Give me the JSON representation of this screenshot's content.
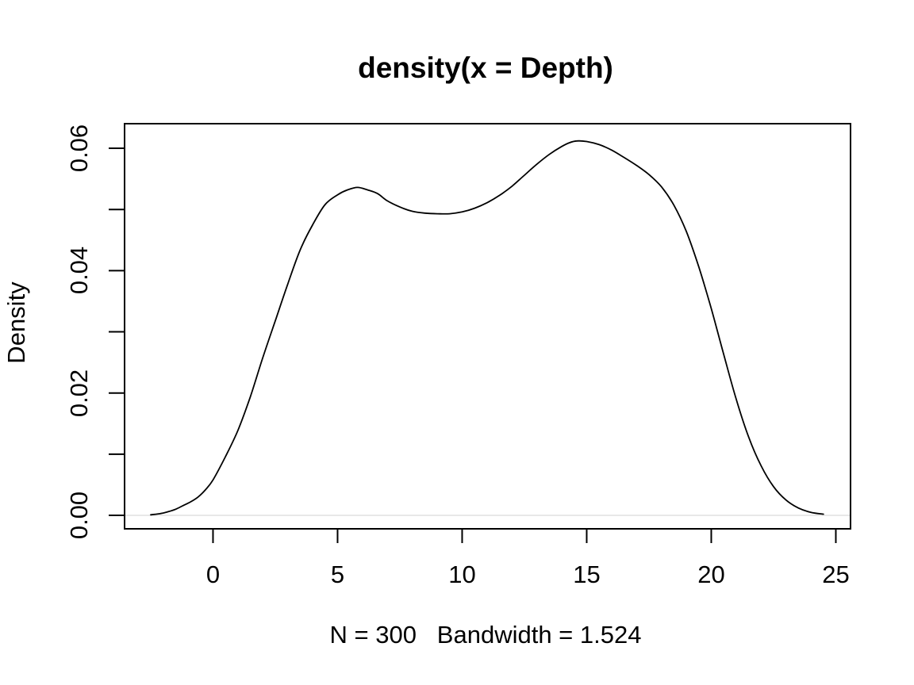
{
  "figure": {
    "background": "#ffffff",
    "text_color": "#000000"
  },
  "chart_data": {
    "type": "line",
    "title": "density(x = Depth)",
    "xlabel": "N = 300   Bandwidth = 1.524",
    "ylabel": "Density",
    "xlim": [
      -3.55,
      25.59
    ],
    "ylim": [
      -0.0022,
      0.06402
    ],
    "grid": false,
    "legend": "none",
    "line_color": "#000000",
    "border_color": "#000000",
    "zero_line": {
      "y": 0,
      "color": "#e8e8e8"
    },
    "x_axis": {
      "ticks": [
        {
          "value": 0,
          "label": "0"
        },
        {
          "value": 5,
          "label": "5"
        },
        {
          "value": 10,
          "label": "10"
        },
        {
          "value": 15,
          "label": "15"
        },
        {
          "value": 20,
          "label": "20"
        },
        {
          "value": 25,
          "label": "25"
        }
      ]
    },
    "y_axis": {
      "ticks": [
        {
          "value": 0.0,
          "label": "0.00"
        },
        {
          "value": 0.01,
          "label": ""
        },
        {
          "value": 0.02,
          "label": "0.02"
        },
        {
          "value": 0.03,
          "label": ""
        },
        {
          "value": 0.04,
          "label": "0.04"
        },
        {
          "value": 0.05,
          "label": ""
        },
        {
          "value": 0.06,
          "label": "0.06"
        }
      ]
    },
    "series": [
      {
        "name": "density",
        "points": [
          [
            -2.5,
            0.0001
          ],
          [
            -2.1,
            0.0003
          ],
          [
            -1.8,
            0.0006
          ],
          [
            -1.5,
            0.001
          ],
          [
            -1.2,
            0.0016
          ],
          [
            -0.9,
            0.0022
          ],
          [
            -0.6,
            0.003
          ],
          [
            -0.3,
            0.0042
          ],
          [
            0.0,
            0.0058
          ],
          [
            0.5,
            0.0096
          ],
          [
            1.0,
            0.0139
          ],
          [
            1.5,
            0.0194
          ],
          [
            2.0,
            0.0258
          ],
          [
            2.5,
            0.0318
          ],
          [
            3.0,
            0.0378
          ],
          [
            3.5,
            0.0434
          ],
          [
            4.0,
            0.0475
          ],
          [
            4.5,
            0.0508
          ],
          [
            5.0,
            0.0524
          ],
          [
            5.4,
            0.0532
          ],
          [
            5.8,
            0.0536
          ],
          [
            6.2,
            0.0532
          ],
          [
            6.6,
            0.0526
          ],
          [
            7.0,
            0.0514
          ],
          [
            7.5,
            0.0504
          ],
          [
            8.0,
            0.0497
          ],
          [
            8.5,
            0.0494
          ],
          [
            9.0,
            0.0493
          ],
          [
            9.5,
            0.0493
          ],
          [
            10.0,
            0.0496
          ],
          [
            10.5,
            0.0502
          ],
          [
            11.0,
            0.0511
          ],
          [
            11.5,
            0.0523
          ],
          [
            12.0,
            0.0538
          ],
          [
            12.5,
            0.0556
          ],
          [
            13.0,
            0.0574
          ],
          [
            13.5,
            0.059
          ],
          [
            14.0,
            0.0603
          ],
          [
            14.3,
            0.0609
          ],
          [
            14.6,
            0.0612
          ],
          [
            15.0,
            0.0611
          ],
          [
            15.5,
            0.0606
          ],
          [
            16.0,
            0.0597
          ],
          [
            16.5,
            0.0585
          ],
          [
            17.0,
            0.0572
          ],
          [
            17.5,
            0.0557
          ],
          [
            18.0,
            0.0537
          ],
          [
            18.5,
            0.0507
          ],
          [
            19.0,
            0.0464
          ],
          [
            19.5,
            0.0406
          ],
          [
            20.0,
            0.0338
          ],
          [
            20.5,
            0.0263
          ],
          [
            21.0,
            0.019
          ],
          [
            21.5,
            0.0128
          ],
          [
            22.0,
            0.0081
          ],
          [
            22.5,
            0.0047
          ],
          [
            23.0,
            0.0025
          ],
          [
            23.5,
            0.0012
          ],
          [
            24.0,
            0.0005
          ],
          [
            24.5,
            0.0002
          ]
        ]
      }
    ]
  }
}
